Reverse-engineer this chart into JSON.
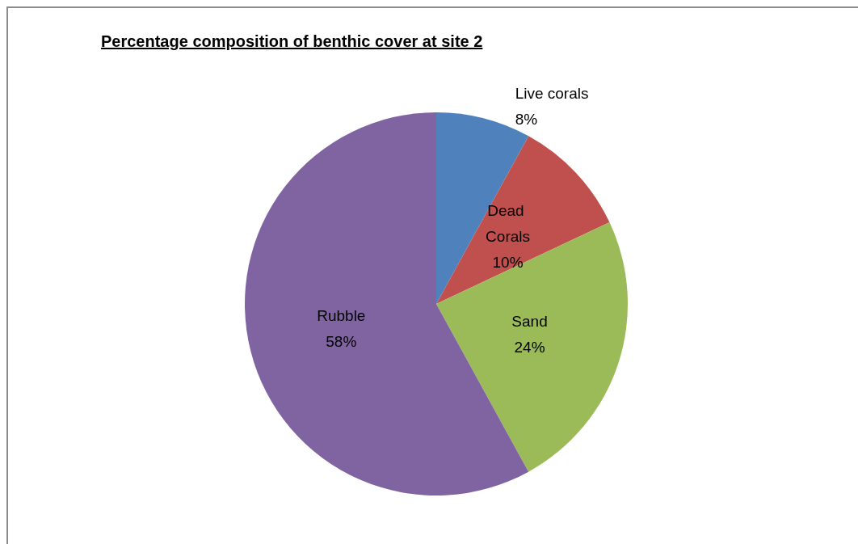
{
  "chart_data": {
    "type": "pie",
    "title": "Percentage composition of benthic cover at site 2",
    "categories": [
      "Live corals",
      "Dead Corals",
      "Sand",
      "Rubble"
    ],
    "values": [
      8,
      10,
      24,
      58
    ],
    "colors": [
      "#4f81bd",
      "#c0504d",
      "#9bbb59",
      "#8064a2"
    ],
    "value_labels": [
      "8%",
      "10%",
      "24%",
      "58%"
    ],
    "legend": false
  }
}
